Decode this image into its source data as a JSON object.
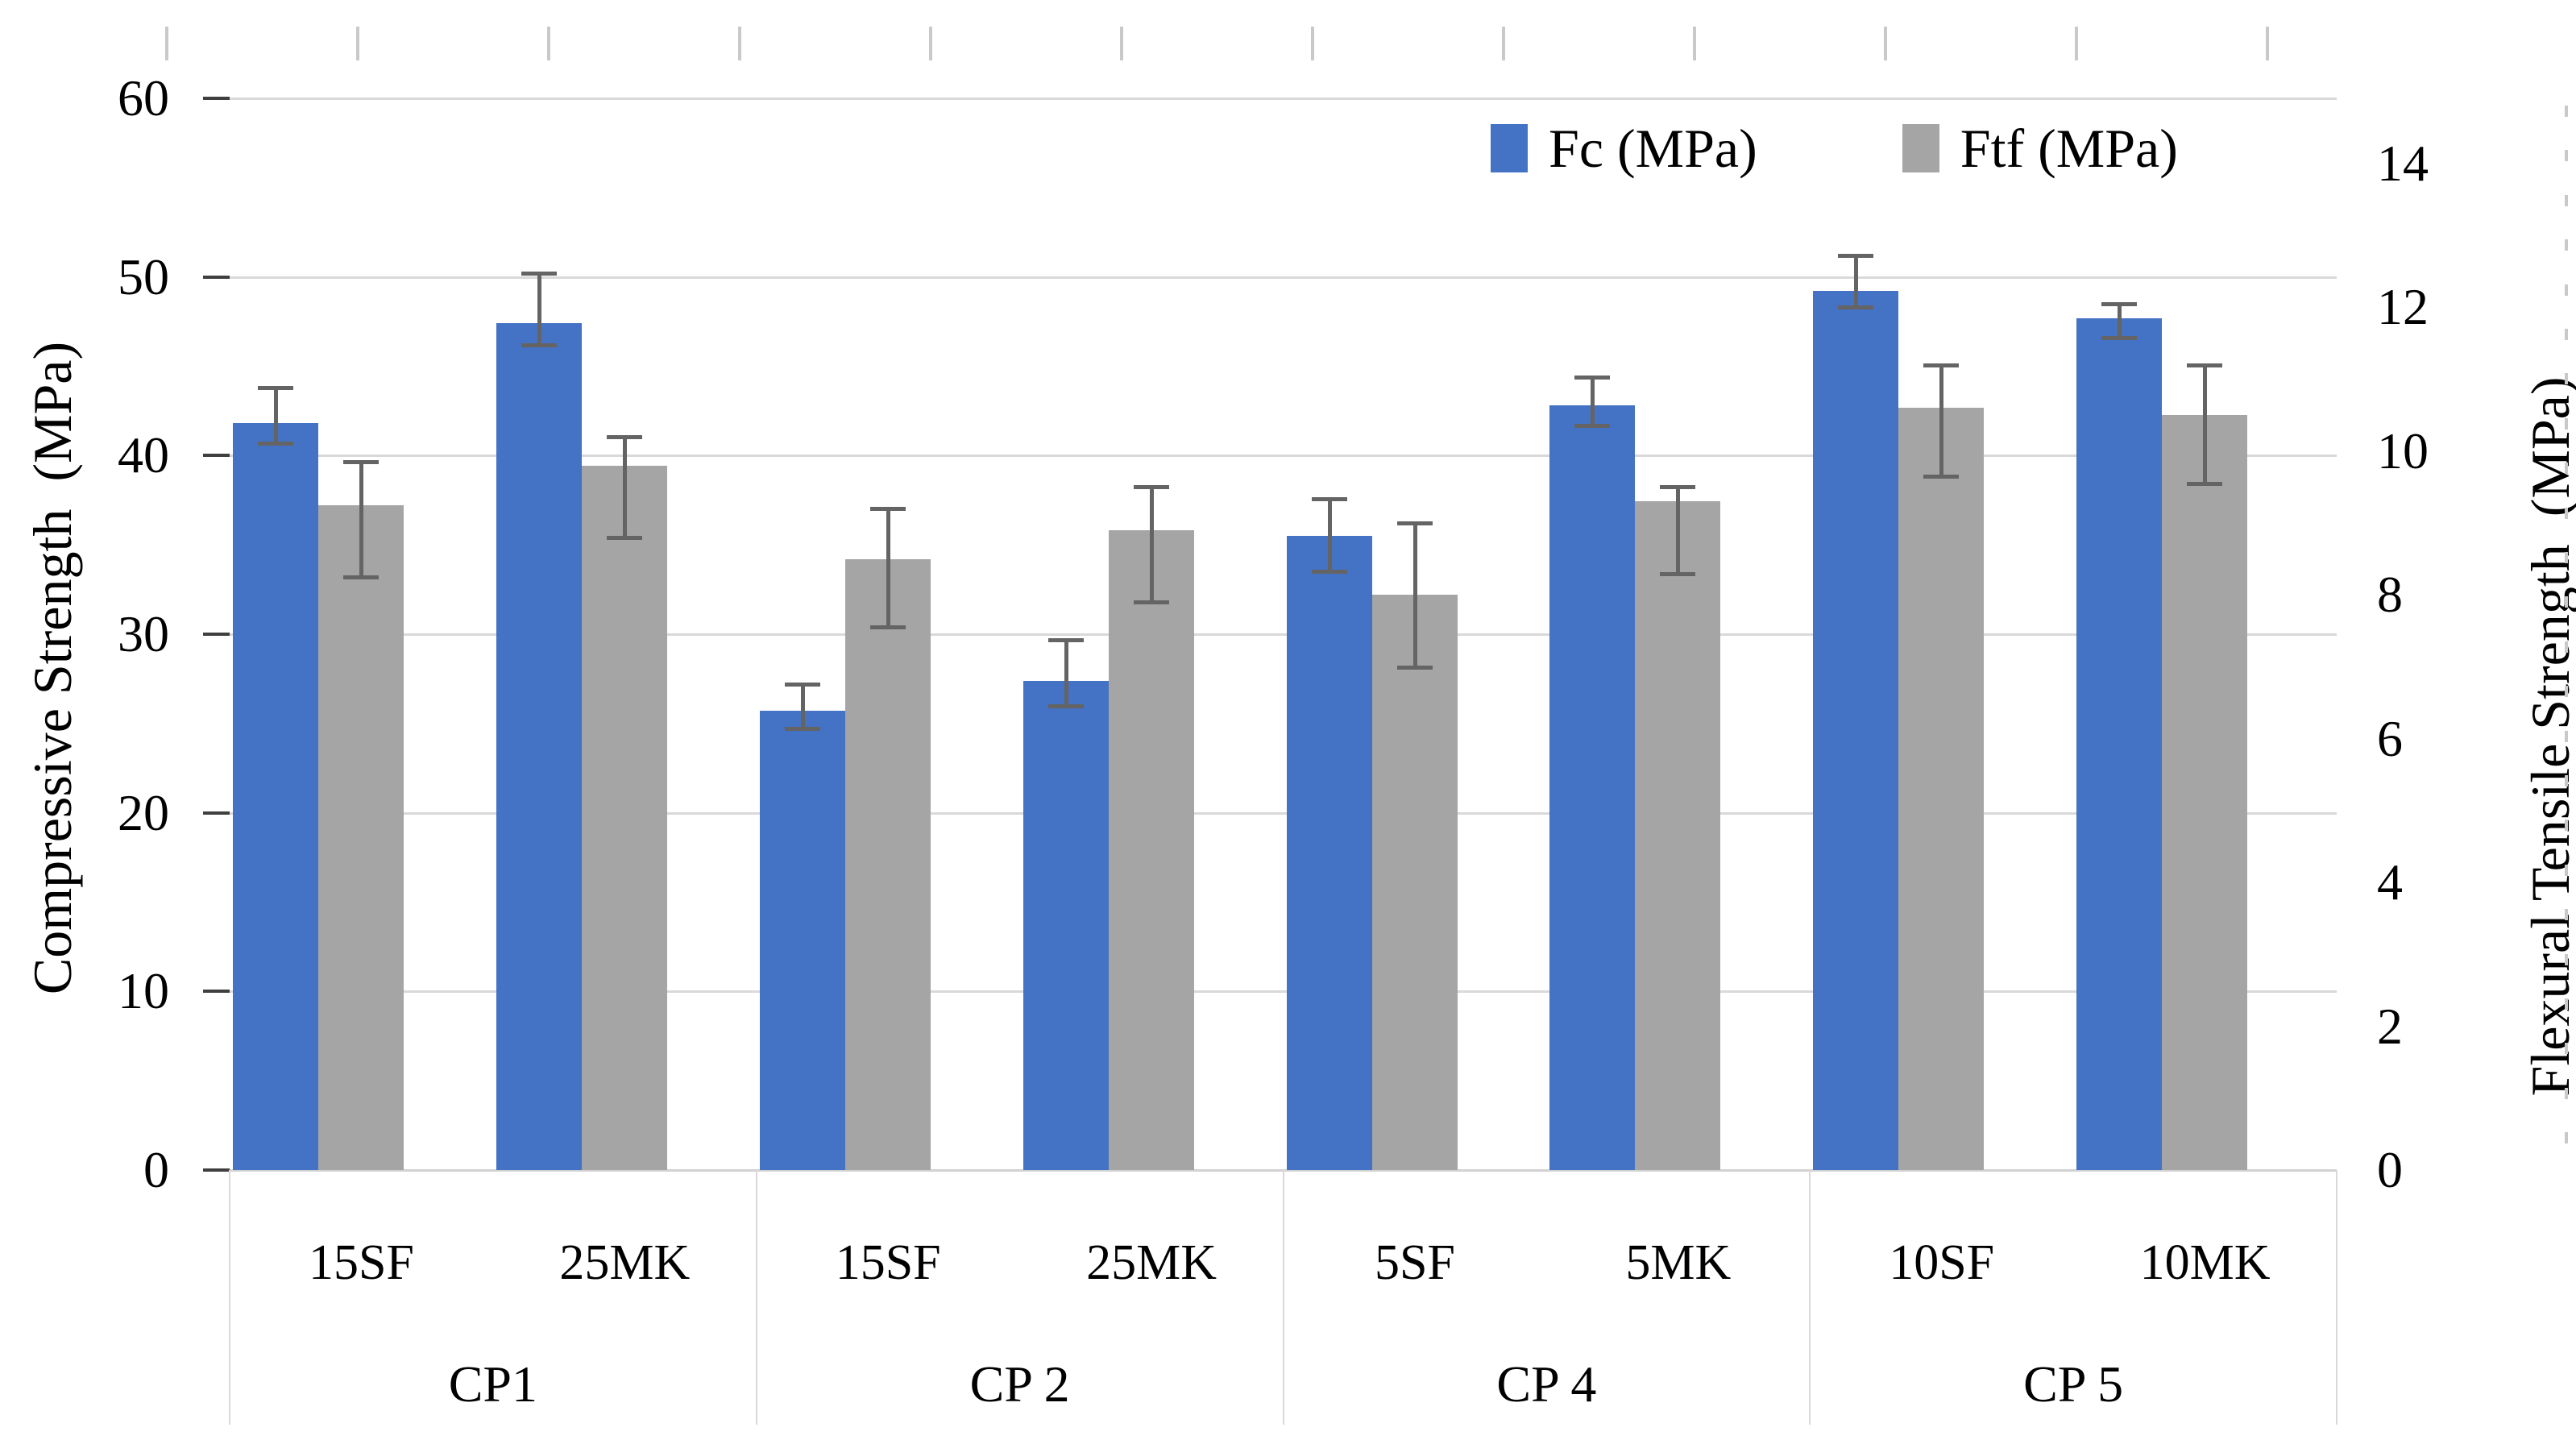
{
  "chart_data": {
    "type": "bar",
    "title": "",
    "legend_position": "top-right",
    "grid": "horizontal-on",
    "colors": {
      "fc_blue": "#4472C4",
      "ftf_gray": "#A5A5A5",
      "error_bar": "#646464",
      "gridline": "#D9D9D9",
      "text": "#000000"
    },
    "legend": [
      {
        "name": "Fc (MPa)",
        "color": "#4472C4"
      },
      {
        "name": "Ftf (MPa)",
        "color": "#A5A5A5"
      }
    ],
    "left_axis": {
      "title": "Compressive Strength  (MPa)",
      "min": 0,
      "max": 60,
      "tick_step": 10,
      "tick_labels": [
        "0",
        "10",
        "20",
        "30",
        "40",
        "50",
        "60"
      ]
    },
    "right_axis": {
      "title": "Flexural Tensile Strength  (MPa)",
      "min": 0,
      "max": 14,
      "tick_step": 2,
      "tick_labels": [
        "0",
        "2",
        "4",
        "6",
        "8",
        "10",
        "12",
        "14"
      ]
    },
    "groups": [
      {
        "label": "CP1",
        "categories": [
          "15SF",
          "25MK"
        ]
      },
      {
        "label": "CP 2",
        "categories": [
          "15SF",
          "25MK"
        ]
      },
      {
        "label": "CP 4",
        "categories": [
          "5SF",
          "5MK"
        ]
      },
      {
        "label": "CP 5",
        "categories": [
          "10SF",
          "10MK"
        ]
      }
    ],
    "series": [
      {
        "name": "Fc (MPa)",
        "axis": "left",
        "color": "#4472C4",
        "values": [
          41.8,
          47.4,
          25.7,
          27.4,
          35.5,
          42.8,
          49.2,
          47.7
        ],
        "err_up": [
          2.0,
          2.8,
          1.5,
          2.3,
          2.1,
          1.6,
          2.0,
          0.8
        ],
        "err_down": [
          1.1,
          1.2,
          1.0,
          1.4,
          2.0,
          1.1,
          0.9,
          1.1
        ]
      },
      {
        "name": "Ftf (MPa)",
        "axis": "right",
        "color": "#A5A5A5",
        "values": [
          9.25,
          9.8,
          8.5,
          8.9,
          8.0,
          9.3,
          10.6,
          10.5
        ],
        "err_up": [
          0.6,
          0.4,
          0.7,
          0.6,
          1.0,
          0.2,
          0.6,
          0.7
        ],
        "err_down": [
          1.0,
          1.0,
          0.95,
          1.0,
          1.0,
          1.0,
          0.95,
          0.95
        ]
      }
    ]
  }
}
